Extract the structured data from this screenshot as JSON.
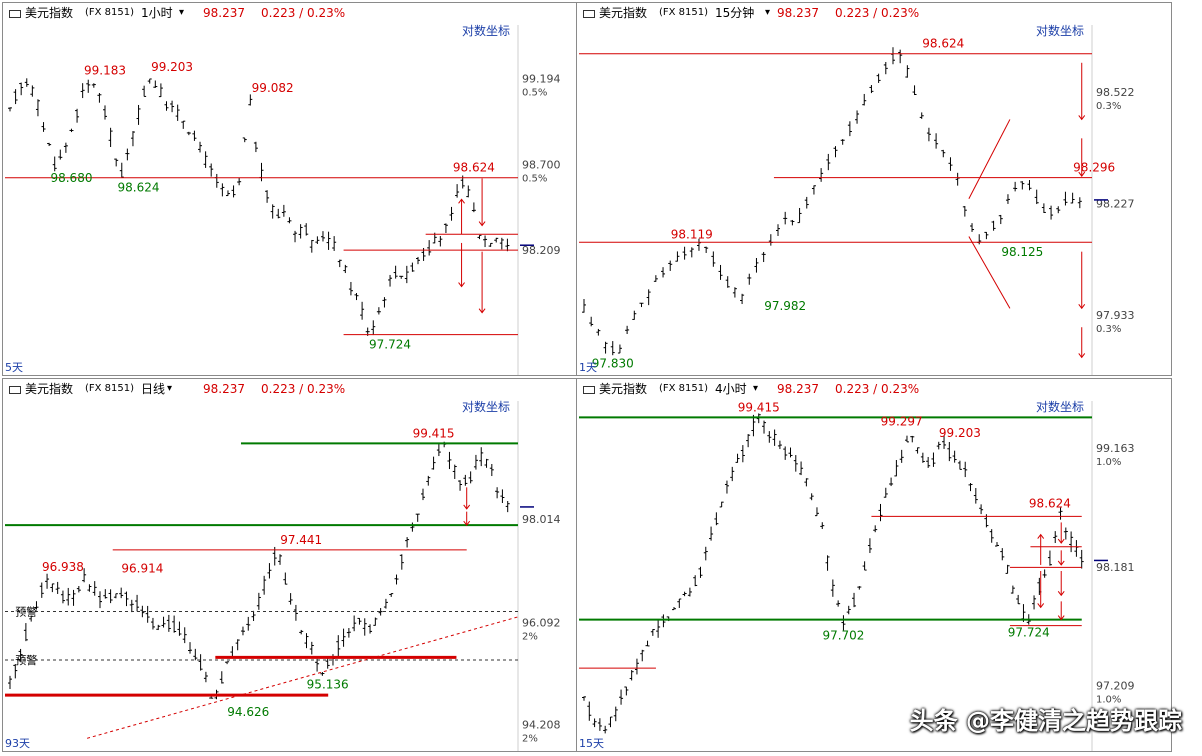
{
  "watermark": "头条 @李健清之趋势跟踪",
  "panels": [
    {
      "id": "p1",
      "left": 2,
      "top": 2,
      "header": {
        "name": "美元指数",
        "code": "(FX 8151)",
        "period": "1小时",
        "price": "98.237",
        "change": "0.223 / 0.23%"
      },
      "log_label": "对数坐标",
      "corner_label": "5天",
      "chart_data": {
        "type": "candlestick",
        "ylim": [
          97.55,
          99.5
        ],
        "n": 90,
        "path": [
          99.0,
          99.15,
          99.183,
          99.05,
          98.85,
          98.68,
          98.8,
          98.95,
          99.12,
          99.183,
          99.05,
          98.85,
          98.62,
          98.8,
          99.0,
          99.203,
          99.15,
          99.05,
          99.0,
          98.95,
          98.85,
          98.75,
          98.65,
          98.55,
          98.5,
          98.6,
          99.082,
          98.7,
          98.5,
          98.4,
          98.45,
          98.3,
          98.35,
          98.2,
          98.3,
          98.25,
          98.15,
          98.0,
          97.9,
          97.724,
          97.85,
          98.0,
          98.1,
          98.05,
          98.15,
          98.2,
          98.25,
          98.3,
          98.4,
          98.624,
          98.5,
          98.3,
          98.25,
          98.3,
          98.237
        ],
        "price_ticks": [
          {
            "v": 99.194,
            "p": "0.5%"
          },
          {
            "v": 98.7,
            "p": "0.5%"
          },
          {
            "v": 98.209,
            "p": ""
          }
        ],
        "annotations": [
          {
            "t": "99.183",
            "v": 99.183,
            "i": 17,
            "c": "red",
            "above": true
          },
          {
            "t": "99.203",
            "v": 99.203,
            "i": 29,
            "c": "red",
            "above": true
          },
          {
            "t": "99.082",
            "v": 99.082,
            "i": 47,
            "c": "red",
            "above": true
          },
          {
            "t": "98.680",
            "v": 98.68,
            "i": 11,
            "c": "green",
            "above": false
          },
          {
            "t": "98.624",
            "v": 98.624,
            "i": 23,
            "c": "green",
            "above": false
          },
          {
            "t": "98.624",
            "v": 98.624,
            "i": 83,
            "c": "red",
            "above": true
          },
          {
            "t": "97.724",
            "v": 97.724,
            "i": 68,
            "c": "green",
            "above": false
          }
        ],
        "hlines": [
          {
            "v": 98.624,
            "c": "#d40000",
            "x1": 0,
            "x2": 1
          },
          {
            "v": 98.209,
            "c": "#d40000",
            "x1": 0.66,
            "x2": 1
          },
          {
            "v": 98.3,
            "c": "#d40000",
            "x1": 0.82,
            "x2": 1
          },
          {
            "v": 97.724,
            "c": "#d40000",
            "x1": 0.66,
            "x2": 1
          }
        ],
        "arrows": [
          {
            "x": 0.93,
            "v1": 98.62,
            "v2": 98.35
          },
          {
            "x": 0.93,
            "v1": 98.2,
            "v2": 97.85
          },
          {
            "x": 0.89,
            "v1": 98.3,
            "v2": 98.5
          },
          {
            "x": 0.89,
            "v1": 98.25,
            "v2": 98.0
          }
        ]
      }
    },
    {
      "id": "p2",
      "left": 576,
      "top": 2,
      "header": {
        "name": "美元指数",
        "code": "(FX 8151)",
        "period": "15分钟",
        "price": "98.237",
        "change": "0.223 / 0.23%"
      },
      "log_label": "对数坐标",
      "corner_label": "1天",
      "chart_data": {
        "type": "candlestick",
        "ylim": [
          97.8,
          98.7
        ],
        "n": 70,
        "path": [
          97.95,
          97.9,
          97.85,
          97.83,
          97.9,
          97.95,
          98.0,
          98.05,
          98.08,
          98.1,
          98.119,
          98.1,
          98.05,
          98.0,
          97.982,
          98.05,
          98.1,
          98.15,
          98.2,
          98.18,
          98.25,
          98.3,
          98.35,
          98.4,
          98.45,
          98.5,
          98.55,
          98.6,
          98.624,
          98.55,
          98.45,
          98.4,
          98.35,
          98.3,
          98.2,
          98.125,
          98.15,
          98.2,
          98.25,
          98.296,
          98.25,
          98.2,
          98.22,
          98.24,
          98.237
        ],
        "price_ticks": [
          {
            "v": 98.522,
            "p": "0.3%"
          },
          {
            "v": 98.227,
            "p": ""
          },
          {
            "v": 97.933,
            "p": "0.3%"
          }
        ],
        "annotations": [
          {
            "t": "98.624",
            "v": 98.624,
            "i": 50,
            "c": "red",
            "above": true
          },
          {
            "t": "98.119",
            "v": 98.119,
            "i": 15,
            "c": "red",
            "above": true
          },
          {
            "t": "97.982",
            "v": 97.982,
            "i": 28,
            "c": "green",
            "above": false
          },
          {
            "t": "98.296",
            "v": 98.296,
            "i": 71,
            "c": "red",
            "above": true
          },
          {
            "t": "98.125",
            "v": 98.125,
            "i": 61,
            "c": "green",
            "above": false
          },
          {
            "t": "97.830",
            "v": 97.83,
            "i": 4,
            "c": "green",
            "above": false
          }
        ],
        "hlines": [
          {
            "v": 98.624,
            "c": "#d40000",
            "x1": 0,
            "x2": 1
          },
          {
            "v": 98.296,
            "c": "#d40000",
            "x1": 0.38,
            "x2": 1
          },
          {
            "v": 98.125,
            "c": "#d40000",
            "x1": 0,
            "x2": 1
          }
        ],
        "arrows": [
          {
            "x": 0.98,
            "v1": 98.6,
            "v2": 98.45
          },
          {
            "x": 0.98,
            "v1": 98.4,
            "v2": 98.3
          },
          {
            "x": 0.98,
            "v1": 98.1,
            "v2": 97.95
          },
          {
            "x": 0.98,
            "v1": 97.9,
            "v2": 97.82
          }
        ],
        "diag": [
          {
            "x1": 0.76,
            "v1": 98.24,
            "x2": 0.84,
            "v2": 98.45
          },
          {
            "x1": 0.76,
            "v1": 98.14,
            "x2": 0.84,
            "v2": 97.95
          }
        ]
      }
    },
    {
      "id": "p3",
      "left": 2,
      "top": 378,
      "header": {
        "name": "美元指数",
        "code": "(FX 8151)",
        "period": "日线",
        "price": "98.237",
        "change": "0.223 / 0.23%"
      },
      "log_label": "对数坐标",
      "corner_label": "93天",
      "chart_data": {
        "type": "candlestick",
        "ylim": [
          93.9,
          100.2
        ],
        "n": 95,
        "path": [
          95.0,
          95.5,
          96.0,
          96.5,
          96.938,
          96.7,
          96.5,
          96.6,
          96.914,
          96.7,
          96.5,
          96.6,
          96.7,
          96.5,
          96.4,
          96.2,
          96.0,
          96.1,
          96.0,
          95.8,
          95.5,
          95.2,
          94.626,
          95.0,
          95.5,
          95.8,
          96.0,
          96.5,
          97.0,
          97.441,
          96.8,
          96.3,
          95.8,
          95.5,
          95.136,
          95.5,
          95.8,
          96.0,
          96.1,
          96.0,
          96.2,
          96.5,
          97.0,
          97.5,
          98.0,
          98.5,
          99.0,
          99.415,
          99.0,
          98.6,
          98.8,
          99.2,
          99.0,
          98.5,
          98.237
        ],
        "price_ticks": [
          {
            "v": 98.014,
            "p": ""
          },
          {
            "v": 96.092,
            "p": "2%"
          },
          {
            "v": 94.208,
            "p": "2%"
          }
        ],
        "annotations": [
          {
            "t": "99.415",
            "v": 99.415,
            "i": 80,
            "c": "red",
            "above": true
          },
          {
            "t": "97.441",
            "v": 97.441,
            "i": 55,
            "c": "red",
            "above": true
          },
          {
            "t": "96.938",
            "v": 96.938,
            "i": 10,
            "c": "red",
            "above": true
          },
          {
            "t": "96.914",
            "v": 96.914,
            "i": 25,
            "c": "red",
            "above": true
          },
          {
            "t": "95.136",
            "v": 95.136,
            "i": 60,
            "c": "green",
            "above": false
          },
          {
            "t": "94.626",
            "v": 94.626,
            "i": 45,
            "c": "green",
            "above": false
          }
        ],
        "hlines": [
          {
            "v": 99.415,
            "c": "#007a00",
            "x1": 0.46,
            "x2": 1
          },
          {
            "v": 97.9,
            "c": "#007a00",
            "x1": 0,
            "x2": 1
          },
          {
            "v": 97.441,
            "c": "#d40000",
            "x1": 0.21,
            "x2": 0.9
          },
          {
            "v": 96.3,
            "c": "#333",
            "x1": 0,
            "x2": 1,
            "dash": true
          },
          {
            "v": 95.4,
            "c": "#333",
            "x1": 0,
            "x2": 1,
            "dash": true
          },
          {
            "v": 95.45,
            "c": "#d40000",
            "x1": 0.41,
            "x2": 0.88,
            "w": 3
          },
          {
            "v": 94.75,
            "c": "#d40000",
            "x1": 0,
            "x2": 0.63,
            "w": 3
          }
        ],
        "diag": [
          {
            "x1": 0.16,
            "v1": 93.95,
            "x2": 1.0,
            "v2": 96.2,
            "dash": true
          }
        ],
        "arrows": [
          {
            "x": 0.9,
            "v1": 98.6,
            "v2": 98.2
          },
          {
            "x": 0.9,
            "v1": 98.15,
            "v2": 97.9
          }
        ],
        "tags": [
          {
            "t": "预警",
            "v": 96.3,
            "x": 0.02
          },
          {
            "t": "预警",
            "v": 95.4,
            "x": 0.02
          }
        ]
      }
    },
    {
      "id": "p4",
      "left": 576,
      "top": 378,
      "header": {
        "name": "美元指数",
        "code": "(FX 8151)",
        "period": "4小时",
        "price": "98.237",
        "change": "0.223 / 0.23%"
      },
      "log_label": "对数坐标",
      "corner_label": "15天",
      "chart_data": {
        "type": "candlestick",
        "ylim": [
          96.75,
          99.55
        ],
        "n": 95,
        "path": [
          97.1,
          96.9,
          96.85,
          97.0,
          97.2,
          97.4,
          97.6,
          97.7,
          97.8,
          97.9,
          98.0,
          98.2,
          98.5,
          98.8,
          99.0,
          99.2,
          99.415,
          99.3,
          99.2,
          99.1,
          99.0,
          98.8,
          98.5,
          98.0,
          97.702,
          97.9,
          98.2,
          98.5,
          98.8,
          99.0,
          99.297,
          99.1,
          99.0,
          99.203,
          99.1,
          99.0,
          98.8,
          98.6,
          98.4,
          98.2,
          97.9,
          97.724,
          98.0,
          98.2,
          98.624,
          98.4,
          98.237
        ],
        "price_ticks": [
          {
            "v": 99.163,
            "p": "1.0%"
          },
          {
            "v": 98.181,
            "p": ""
          },
          {
            "v": 97.209,
            "p": "1.0%"
          }
        ],
        "annotations": [
          {
            "t": "99.415",
            "v": 99.415,
            "i": 33,
            "c": "red",
            "above": true
          },
          {
            "t": "99.297",
            "v": 99.297,
            "i": 60,
            "c": "red",
            "above": true
          },
          {
            "t": "99.203",
            "v": 99.203,
            "i": 71,
            "c": "red",
            "above": true
          },
          {
            "t": "98.624",
            "v": 98.624,
            "i": 88,
            "c": "red",
            "above": true
          },
          {
            "t": "97.702",
            "v": 97.702,
            "i": 49,
            "c": "green",
            "above": false
          },
          {
            "t": "97.724",
            "v": 97.724,
            "i": 84,
            "c": "green",
            "above": false
          }
        ],
        "hlines": [
          {
            "v": 99.415,
            "c": "#007a00",
            "x1": 0,
            "x2": 1
          },
          {
            "v": 98.6,
            "c": "#d40000",
            "x1": 0.57,
            "x2": 0.98
          },
          {
            "v": 98.35,
            "c": "#d40000",
            "x1": 0.88,
            "x2": 0.98
          },
          {
            "v": 98.18,
            "c": "#d40000",
            "x1": 0.84,
            "x2": 0.98
          },
          {
            "v": 97.75,
            "c": "#007a00",
            "x1": 0,
            "x2": 0.98
          },
          {
            "v": 97.7,
            "c": "#d40000",
            "x1": 0.84,
            "x2": 0.98
          },
          {
            "v": 97.35,
            "c": "#d40000",
            "x1": 0,
            "x2": 0.15
          }
        ],
        "arrows": [
          {
            "x": 0.94,
            "v1": 98.55,
            "v2": 98.38
          },
          {
            "x": 0.94,
            "v1": 98.32,
            "v2": 98.2
          },
          {
            "x": 0.94,
            "v1": 98.15,
            "v2": 97.95
          },
          {
            "x": 0.94,
            "v1": 97.9,
            "v2": 97.75
          },
          {
            "x": 0.9,
            "v1": 98.2,
            "v2": 98.45
          },
          {
            "x": 0.9,
            "v1": 98.15,
            "v2": 97.85
          }
        ]
      }
    }
  ]
}
